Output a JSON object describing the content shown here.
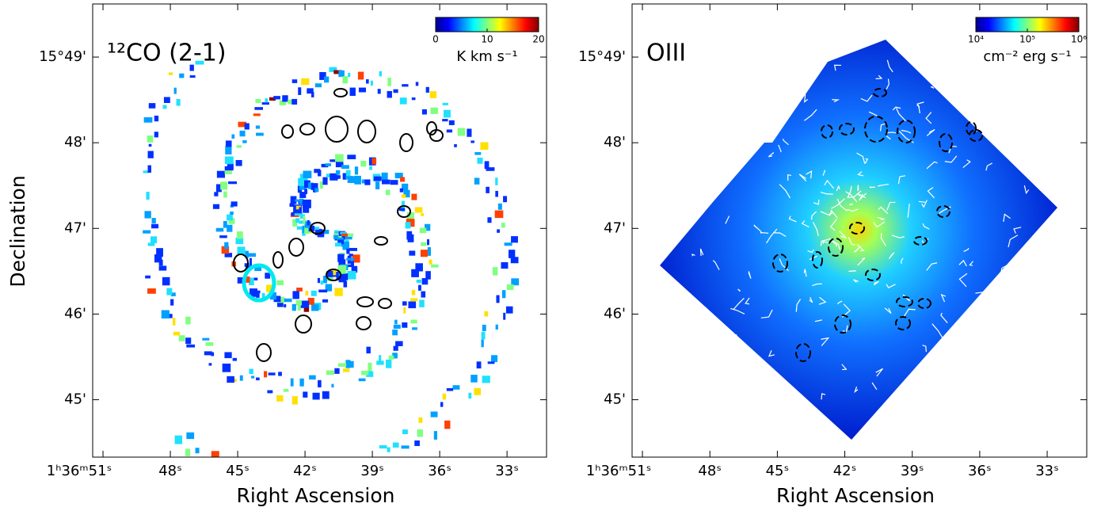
{
  "chart_data": [
    {
      "type": "image",
      "title": "¹²CO (2-1)",
      "xlabel": "Right Ascension",
      "ylabel": "Declination",
      "xlim": [
        51.46,
        31.24
      ],
      "ylim": [
        44.33,
        49.62
      ],
      "xticks": [
        {
          "value": 51,
          "label": "1ʰ36ᵐ51ˢ"
        },
        {
          "value": 48,
          "label": "48ˢ"
        },
        {
          "value": 45,
          "label": "45ˢ"
        },
        {
          "value": 42,
          "label": "42ˢ"
        },
        {
          "value": 39,
          "label": "39ˢ"
        },
        {
          "value": 36,
          "label": "36ˢ"
        },
        {
          "value": 33,
          "label": "33ˢ"
        }
      ],
      "yticks": [
        {
          "value": 45,
          "label": "45'"
        },
        {
          "value": 46,
          "label": "46'"
        },
        {
          "value": 47,
          "label": "47'"
        },
        {
          "value": 48,
          "label": "48'"
        },
        {
          "value": 49,
          "label": "15°49'"
        }
      ],
      "colorbar": {
        "colormap": "jet",
        "log": false,
        "lim": [
          0,
          20
        ],
        "ticks": [
          0,
          10,
          20
        ],
        "label": "K km s⁻¹"
      }
    },
    {
      "type": "image",
      "title": "OIII",
      "xlabel": "Right Ascension",
      "xlim": [
        51.46,
        31.24
      ],
      "ylim": [
        44.33,
        49.62
      ],
      "xticks": [
        {
          "value": 51,
          "label": "1ʰ36ᵐ51ˢ"
        },
        {
          "value": 48,
          "label": "48ˢ"
        },
        {
          "value": 45,
          "label": "45ˢ"
        },
        {
          "value": 42,
          "label": "42ˢ"
        },
        {
          "value": 39,
          "label": "39ˢ"
        },
        {
          "value": 36,
          "label": "36ˢ"
        },
        {
          "value": 33,
          "label": "33ˢ"
        }
      ],
      "yticks": [
        {
          "value": 45,
          "label": "45'"
        },
        {
          "value": 46,
          "label": "46'"
        },
        {
          "value": 47,
          "label": "47'"
        },
        {
          "value": 48,
          "label": "48'"
        },
        {
          "value": 49,
          "label": "15°49'"
        }
      ],
      "colorbar": {
        "colormap": "jet",
        "log": true,
        "lim": [
          10000,
          1000000
        ],
        "ticks": [
          {
            "value": 10000,
            "label": "10⁴"
          },
          {
            "value": 100000,
            "label": "10⁵"
          },
          {
            "value": 1000000,
            "label": "10⁶"
          }
        ],
        "label": "cm⁻² erg s⁻¹"
      }
    }
  ]
}
